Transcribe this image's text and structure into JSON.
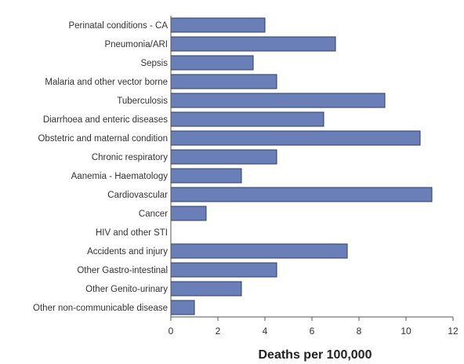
{
  "chart_data": {
    "type": "bar",
    "orientation": "horizontal",
    "categories": [
      "Perinatal conditions - CA",
      "Pneumonia/ARI",
      "Sepsis",
      "Malaria and other vector borne",
      "Tuberculosis",
      "Diarrhoea and enteric diseases",
      "Obstetric and maternal condition",
      "Chronic respiratory",
      "Aanemia - Haematology",
      "Cardiovascular",
      "Cancer",
      "HIV and other STI",
      "Accidents and injury",
      "Other Gastro-intestinal",
      "Other Genito-urinary",
      "Other non-communicable disease"
    ],
    "values": [
      4,
      7,
      3.5,
      4.5,
      9.1,
      6.5,
      10.6,
      4.5,
      3,
      11.1,
      1.5,
      0,
      7.5,
      4.5,
      3,
      1
    ],
    "title": "",
    "xlabel": "Deaths per 100,000",
    "ylabel": "",
    "xlim": [
      0,
      12
    ],
    "xticks": [
      "0",
      "2",
      "4",
      "6",
      "8",
      "10",
      "12"
    ],
    "grid": false,
    "bar_color": "#6a7fb8",
    "bar_edge_color": "#2f3b66"
  }
}
